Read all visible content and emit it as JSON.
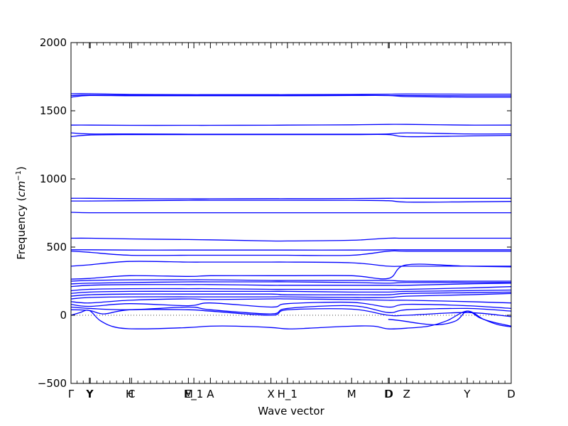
{
  "chart_data": {
    "type": "line",
    "title": "",
    "xlabel": "Wave vector",
    "ylabel": "Frequency ($cm^{-1}$)",
    "ylabel_text": "Frequency (",
    "ylabel_unit": "cm",
    "ylabel_exp": "−1",
    "ylabel_close": ")",
    "ylim": [
      -500,
      2000
    ],
    "yticks": [
      -500,
      0,
      500,
      1000,
      1500,
      2000
    ],
    "ytick_labels": [
      "−500",
      "0",
      "500",
      "1000",
      "1500",
      "2000"
    ],
    "xlim": [
      0,
      24
    ],
    "high_symmetry_points": [
      {
        "label": "Γ",
        "x": 0
      },
      {
        "label": "Y",
        "x": 1.0
      },
      {
        "label": "Y",
        "x": 1.05
      },
      {
        "label": "H",
        "x": 3.2
      },
      {
        "label": "C",
        "x": 3.3
      },
      {
        "label": "M",
        "x": 6.4
      },
      {
        "label": "E_1",
        "x": 6.7
      },
      {
        "label": "A",
        "x": 7.6
      },
      {
        "label": "X",
        "x": 10.9
      },
      {
        "label": "H_1",
        "x": 11.8
      },
      {
        "label": "M",
        "x": 15.3
      },
      {
        "label": "D",
        "x": 17.3
      },
      {
        "label": "D",
        "x": 17.35
      },
      {
        "label": "Z",
        "x": 18.3
      },
      {
        "label": "Y",
        "x": 21.6
      },
      {
        "label": "D",
        "x": 24
      }
    ],
    "zero_line": true,
    "grid": false,
    "line_color": "#0000ff",
    "series": [
      {
        "x": [
          0,
          1,
          3.2,
          6.4,
          7.6,
          10.9,
          11.8,
          15.3,
          17.3,
          18.3,
          21.6,
          24
        ],
        "values": [
          1625,
          1625,
          1620,
          1618,
          1618,
          1618,
          1618,
          1620,
          1622,
          1623,
          1622,
          1622
        ]
      },
      {
        "x": [
          0,
          1,
          3.2,
          6.4,
          7.6,
          10.9,
          11.8,
          15.3,
          17.3,
          18.3,
          21.6,
          24
        ],
        "values": [
          1600,
          1612,
          1610,
          1610,
          1610,
          1610,
          1610,
          1612,
          1612,
          1604,
          1600,
          1600
        ]
      },
      {
        "x": [
          0,
          1,
          3.2,
          6.4,
          7.6,
          10.9,
          11.8,
          15.3,
          17.3,
          18.3,
          21.6,
          24
        ],
        "values": [
          1612,
          1615,
          1614,
          1614,
          1614,
          1614,
          1614,
          1614,
          1612,
          1612,
          1610,
          1610
        ]
      },
      {
        "x": [
          0,
          1,
          3.2,
          6.4,
          7.6,
          10.9,
          11.8,
          15.3,
          17.3,
          18.3,
          21.6,
          24
        ],
        "values": [
          1395,
          1395,
          1393,
          1393,
          1393,
          1394,
          1395,
          1397,
          1400,
          1400,
          1395,
          1395
        ]
      },
      {
        "x": [
          0,
          1,
          3.2,
          6.4,
          7.6,
          10.9,
          11.8,
          15.3,
          17.3,
          18.3,
          21.6,
          24
        ],
        "values": [
          1338,
          1330,
          1330,
          1328,
          1328,
          1328,
          1328,
          1328,
          1330,
          1338,
          1330,
          1330
        ]
      },
      {
        "x": [
          0,
          1,
          3.2,
          6.4,
          7.6,
          10.9,
          11.8,
          15.3,
          17.3,
          18.3,
          21.6,
          24
        ],
        "values": [
          1310,
          1322,
          1325,
          1325,
          1325,
          1325,
          1325,
          1325,
          1325,
          1310,
          1315,
          1320
        ]
      },
      {
        "x": [
          0,
          1,
          3.2,
          6.4,
          7.6,
          10.9,
          11.8,
          15.3,
          17.3,
          18.3,
          21.6,
          24
        ],
        "values": [
          858,
          858,
          855,
          854,
          854,
          855,
          855,
          856,
          858,
          858,
          858,
          858
        ]
      },
      {
        "x": [
          0,
          1,
          3.2,
          6.4,
          7.6,
          10.9,
          11.8,
          15.3,
          17.3,
          18.3,
          21.6,
          24
        ],
        "values": [
          838,
          838,
          840,
          843,
          843,
          843,
          843,
          843,
          840,
          830,
          832,
          835
        ]
      },
      {
        "x": [
          0,
          1,
          3.2,
          6.4,
          7.6,
          10.9,
          11.8,
          15.3,
          17.3,
          18.3,
          21.6,
          24
        ],
        "values": [
          755,
          752,
          752,
          752,
          752,
          752,
          752,
          752,
          752,
          752,
          752,
          752
        ]
      },
      {
        "x": [
          0,
          1,
          3.2,
          6.4,
          7.6,
          10.9,
          11.8,
          15.3,
          17.3,
          18.3,
          21.6,
          24
        ],
        "values": [
          565,
          565,
          560,
          555,
          553,
          545,
          545,
          550,
          565,
          565,
          565,
          565
        ]
      },
      {
        "x": [
          0,
          1,
          3.2,
          6.4,
          7.6,
          10.9,
          11.8,
          15.3,
          17.3,
          18.3,
          21.6,
          24
        ],
        "values": [
          480,
          480,
          478,
          478,
          478,
          478,
          478,
          478,
          480,
          480,
          480,
          480
        ]
      },
      {
        "x": [
          0,
          1,
          3.2,
          6.4,
          7.6,
          10.9,
          11.8,
          15.3,
          17.3,
          18.3,
          21.6,
          24
        ],
        "values": [
          470,
          462,
          440,
          440,
          440,
          440,
          440,
          440,
          470,
          470,
          470,
          470
        ]
      },
      {
        "x": [
          0,
          1,
          3.2,
          6.4,
          7.6,
          10.9,
          11.8,
          15.3,
          17.3,
          18.3,
          21.6,
          24
        ],
        "values": [
          360,
          370,
          395,
          390,
          390,
          390,
          390,
          385,
          360,
          360,
          360,
          360
        ]
      },
      {
        "x": [
          0,
          1,
          3.2,
          6.4,
          7.6,
          10.9,
          11.8,
          15.3,
          17.3,
          18.3,
          21.6,
          24
        ],
        "values": [
          265,
          270,
          290,
          285,
          290,
          290,
          290,
          290,
          270,
          370,
          360,
          355
        ]
      },
      {
        "x": [
          0,
          1,
          3.2,
          6.4,
          7.6,
          10.9,
          11.8,
          15.3,
          17.3,
          18.3,
          21.6,
          24
        ],
        "values": [
          250,
          255,
          260,
          260,
          260,
          255,
          255,
          255,
          255,
          250,
          250,
          250
        ]
      },
      {
        "x": [
          0,
          1,
          3.2,
          6.4,
          7.6,
          10.9,
          11.8,
          15.3,
          17.3,
          18.3,
          21.6,
          24
        ],
        "values": [
          230,
          235,
          240,
          245,
          245,
          245,
          245,
          240,
          235,
          240,
          240,
          240
        ]
      },
      {
        "x": [
          0,
          1,
          3.2,
          6.4,
          7.6,
          10.9,
          11.8,
          15.3,
          17.3,
          18.3,
          21.6,
          24
        ],
        "values": [
          210,
          220,
          225,
          225,
          225,
          220,
          220,
          220,
          220,
          220,
          230,
          235
        ]
      },
      {
        "x": [
          0,
          1,
          3.2,
          6.4,
          7.6,
          10.9,
          11.8,
          15.3,
          17.3,
          18.3,
          21.6,
          24
        ],
        "values": [
          180,
          190,
          195,
          195,
          195,
          190,
          190,
          190,
          190,
          190,
          200,
          210
        ]
      },
      {
        "x": [
          0,
          1,
          3.2,
          6.4,
          7.6,
          10.9,
          11.8,
          15.3,
          17.3,
          18.3,
          21.6,
          24
        ],
        "values": [
          160,
          170,
          175,
          175,
          175,
          175,
          175,
          170,
          170,
          175,
          180,
          185
        ]
      },
      {
        "x": [
          0,
          1,
          3.2,
          6.4,
          7.6,
          10.9,
          11.8,
          15.3,
          17.3,
          18.3,
          21.6,
          24
        ],
        "values": [
          140,
          150,
          155,
          155,
          155,
          155,
          150,
          150,
          150,
          160,
          165,
          170
        ]
      },
      {
        "x": [
          0,
          1,
          3.2,
          6.4,
          7.6,
          10.9,
          11.8,
          15.3,
          17.3,
          18.3,
          21.6,
          24
        ],
        "values": [
          120,
          130,
          135,
          135,
          135,
          135,
          135,
          130,
          130,
          140,
          150,
          160
        ]
      },
      {
        "x": [
          0,
          1,
          3.2,
          6.4,
          7.6,
          10.9,
          11.8,
          15.3,
          17.3,
          18.3,
          21.6,
          24
        ],
        "values": [
          100,
          90,
          110,
          120,
          115,
          120,
          120,
          115,
          110,
          110,
          100,
          90
        ]
      },
      {
        "x": [
          0,
          1,
          3.2,
          6.4,
          7.6,
          10.9,
          11.8,
          15.3,
          17.3,
          18.3,
          21.6,
          24
        ],
        "values": [
          80,
          65,
          85,
          70,
          90,
          60,
          85,
          95,
          60,
          80,
          70,
          50
        ]
      },
      {
        "x": [
          0,
          1,
          3.2,
          6.4,
          7.6,
          10.9,
          11.8,
          15.3,
          17.3,
          18.3,
          21.6,
          24
        ],
        "values": [
          60,
          50,
          40,
          60,
          40,
          10,
          50,
          70,
          20,
          40,
          50,
          30
        ]
      },
      {
        "x": [
          0,
          1,
          1.8,
          3.2,
          6.4,
          7.6,
          10.9,
          11.8,
          15.3,
          17.3,
          18.3,
          21.6,
          24
        ],
        "values": [
          40,
          35,
          10,
          40,
          40,
          30,
          0,
          40,
          45,
          0,
          0,
          20,
          -10
        ]
      },
      {
        "x": [
          0,
          0.5,
          1,
          1.6,
          2.5,
          4,
          6.4,
          7.6,
          9,
          10.9,
          11.8,
          13,
          15.3,
          16.5,
          17.3,
          18.3,
          19.5,
          20.5,
          21.6,
          22.5,
          23.3,
          24
        ],
        "values": [
          0,
          20,
          35,
          -40,
          -90,
          -100,
          -90,
          -80,
          -80,
          -90,
          -100,
          -95,
          -80,
          -80,
          -100,
          -95,
          -80,
          -40,
          30,
          -30,
          -70,
          -85
        ]
      },
      {
        "x": [
          17.3,
          18,
          19,
          20,
          21,
          21.6,
          22.3,
          23,
          24
        ],
        "values": [
          -30,
          -40,
          -60,
          -70,
          -40,
          30,
          -20,
          -50,
          -80
        ]
      }
    ]
  }
}
